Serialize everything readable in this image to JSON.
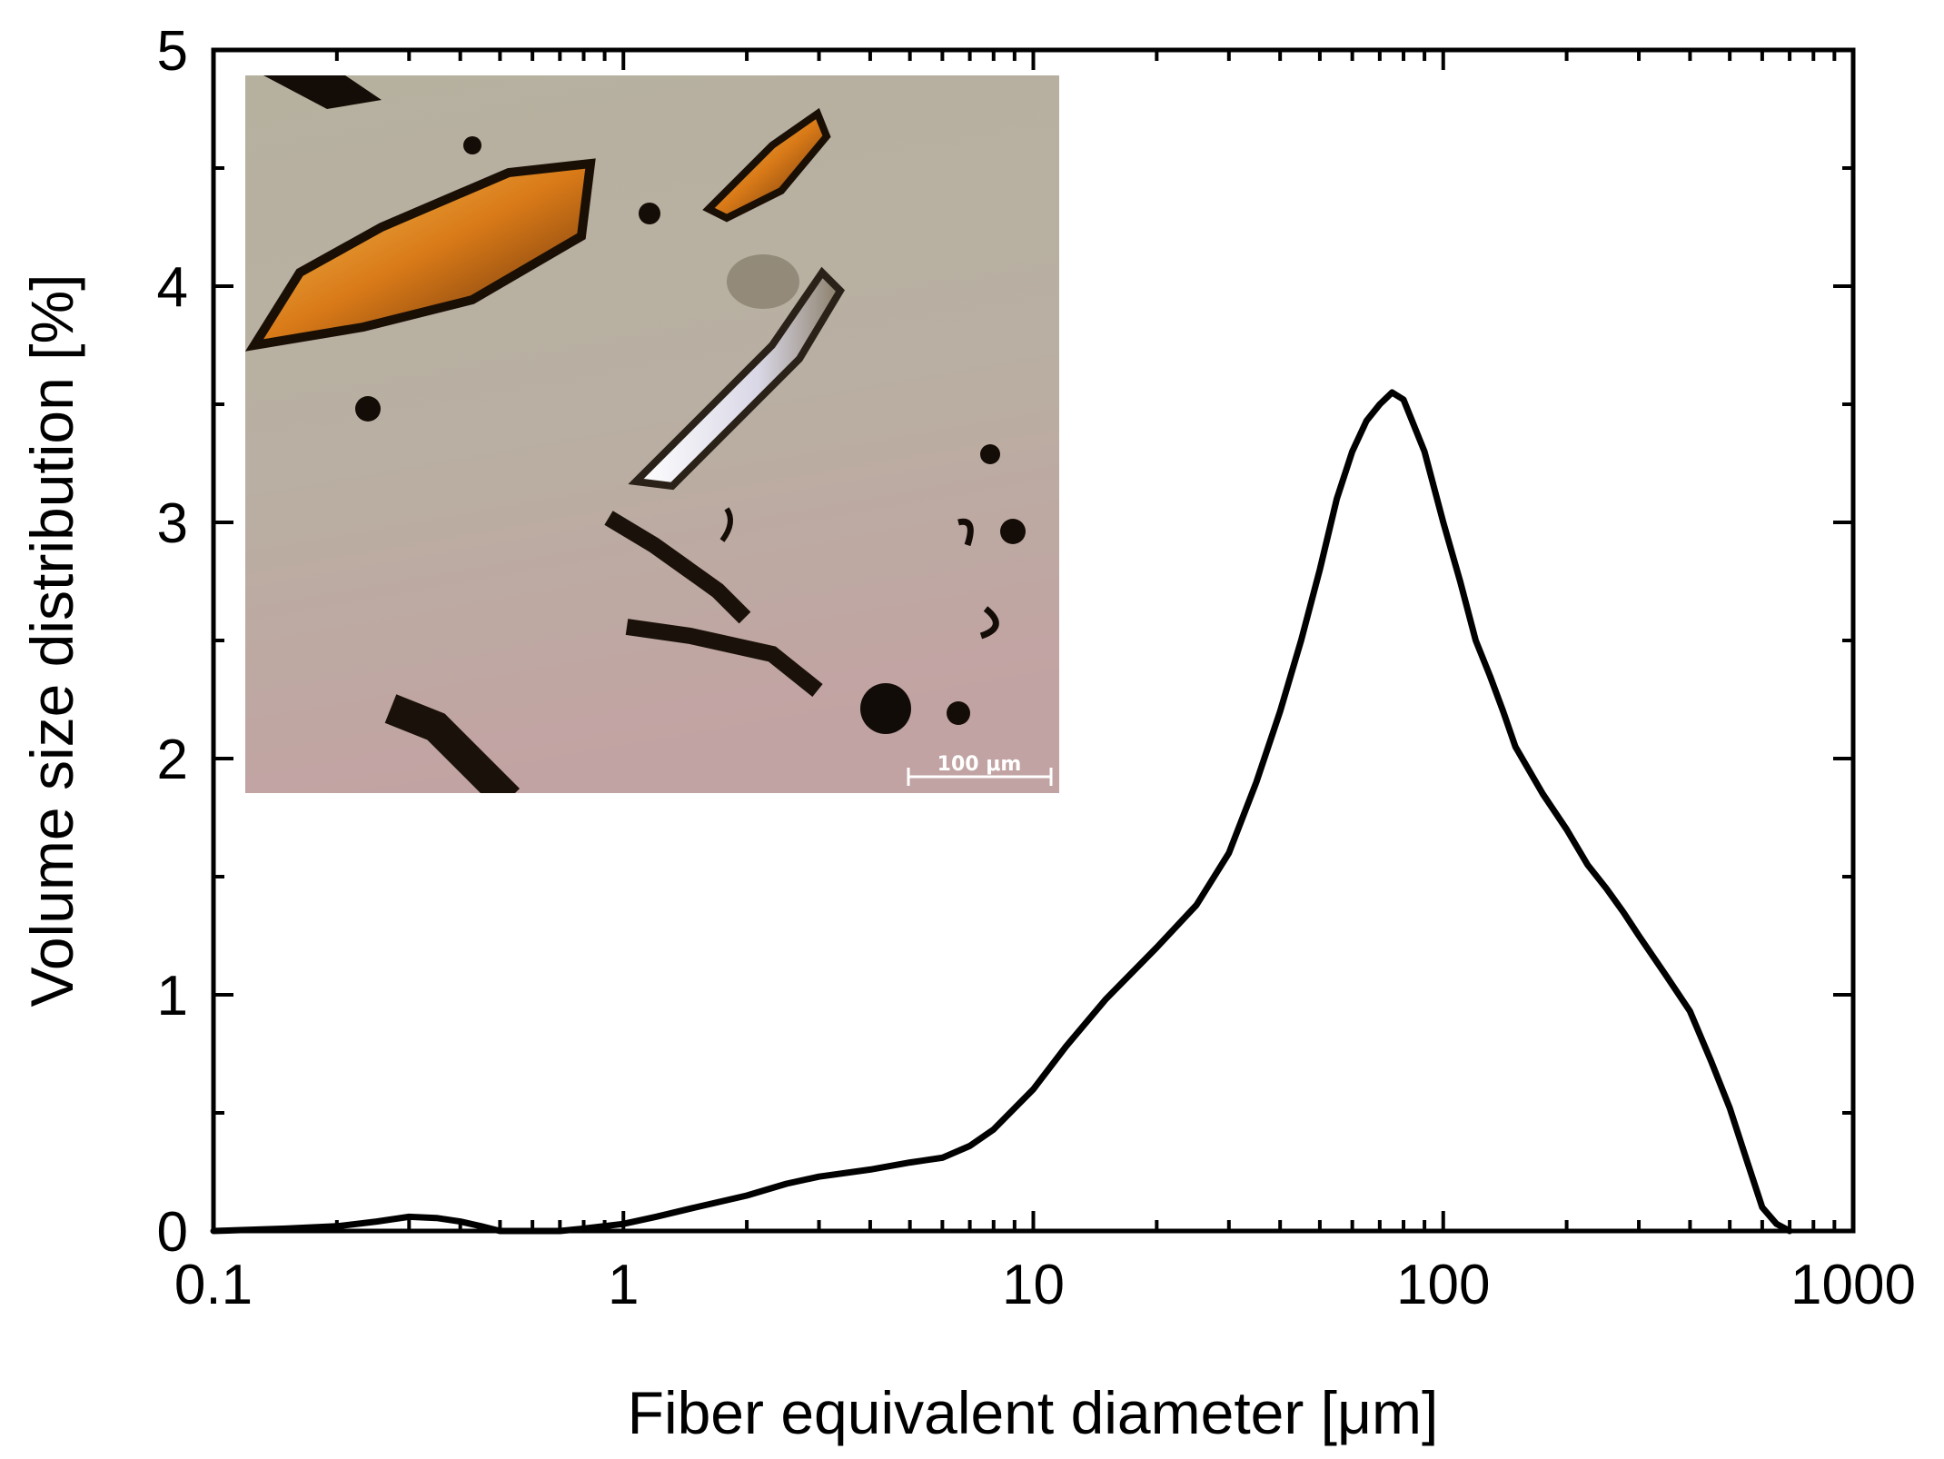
{
  "chart_data": {
    "type": "line",
    "title": "",
    "xlabel": "Fiber equivalent diameter [μm]",
    "ylabel": "Volume size distribution [%]",
    "x_scale": "log",
    "xlim": [
      0.1,
      1000
    ],
    "ylim": [
      0,
      5
    ],
    "x_ticks": [
      0.1,
      1,
      10,
      100,
      1000
    ],
    "x_tick_labels": [
      "0.1",
      "1",
      "10",
      "100",
      "1000"
    ],
    "y_ticks": [
      0,
      1,
      2,
      3,
      4,
      5
    ],
    "y_tick_labels": [
      "0",
      "1",
      "2",
      "3",
      "4",
      "5"
    ],
    "grid": false,
    "line_color": "#000000",
    "series": [
      {
        "x": [
          0.1,
          0.15,
          0.2,
          0.25,
          0.3,
          0.35,
          0.4,
          0.45,
          0.5,
          0.6,
          0.7,
          0.8,
          1.0,
          1.2,
          1.5,
          2.0,
          2.5,
          3.0,
          4.0,
          5.0,
          6.0,
          7.0,
          8.0,
          9.0,
          10,
          12,
          15,
          20,
          25,
          30,
          35,
          40,
          45,
          50,
          55,
          60,
          65,
          70,
          75,
          80,
          90,
          100,
          110,
          120,
          130,
          140,
          150,
          175,
          200,
          225,
          250,
          275,
          300,
          350,
          400,
          450,
          500,
          550,
          600,
          650,
          700
        ],
        "y": [
          0.0,
          0.01,
          0.02,
          0.04,
          0.06,
          0.055,
          0.04,
          0.02,
          0.0,
          0.0,
          0.0,
          0.01,
          0.03,
          0.06,
          0.1,
          0.15,
          0.2,
          0.23,
          0.26,
          0.29,
          0.31,
          0.36,
          0.43,
          0.52,
          0.6,
          0.78,
          0.98,
          1.2,
          1.38,
          1.6,
          1.9,
          2.2,
          2.5,
          2.8,
          3.1,
          3.3,
          3.43,
          3.5,
          3.55,
          3.52,
          3.3,
          3.0,
          2.75,
          2.5,
          2.35,
          2.2,
          2.05,
          1.85,
          1.7,
          1.55,
          1.45,
          1.35,
          1.25,
          1.08,
          0.93,
          0.72,
          0.52,
          0.3,
          0.1,
          0.03,
          0.0
        ]
      }
    ]
  },
  "inset": {
    "scale_bar_label": "100 μm"
  }
}
